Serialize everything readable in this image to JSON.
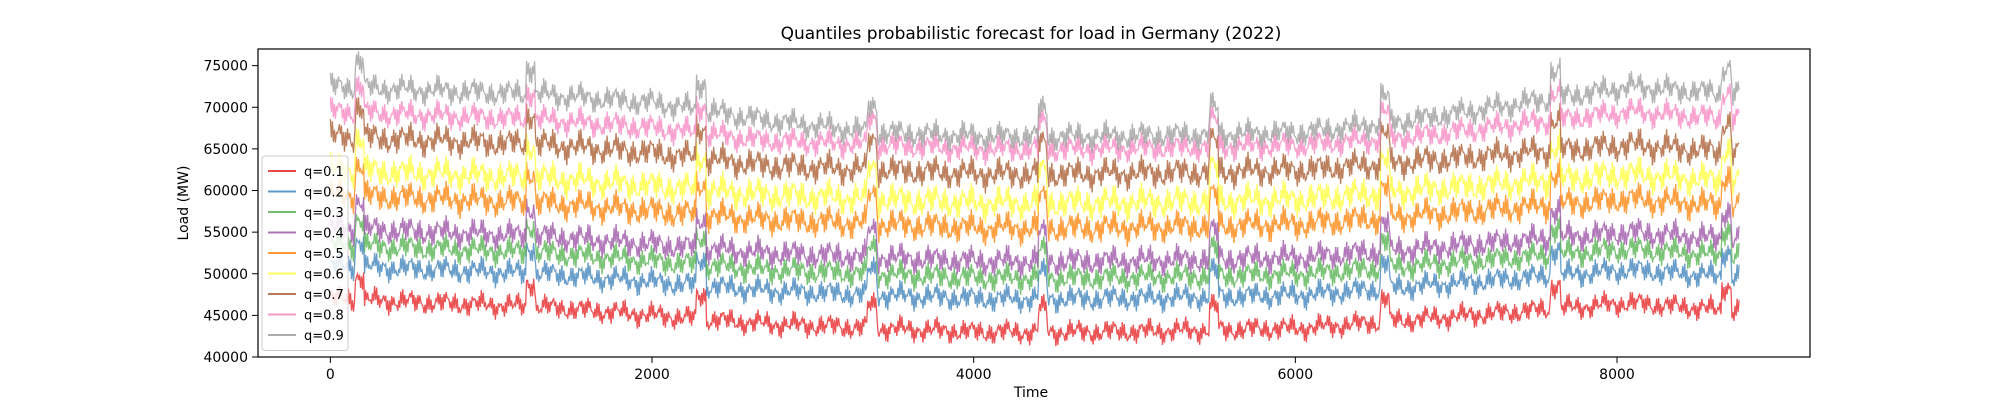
{
  "chart_data": {
    "type": "line",
    "title": "Quantiles probabilistic forecast for load in Germany (2022)",
    "xlabel": "Time",
    "ylabel": "Load (MW)",
    "xlim": [
      -450,
      9200
    ],
    "ylim": [
      40000,
      77000
    ],
    "x_range": [
      0,
      8759
    ],
    "xticks": [
      0,
      2000,
      4000,
      6000,
      8000
    ],
    "xtick_labels": [
      "0",
      "2000",
      "4000",
      "6000",
      "8000"
    ],
    "yticks": [
      40000,
      45000,
      50000,
      55000,
      60000,
      65000,
      70000,
      75000
    ],
    "ytick_labels": [
      "40000",
      "45000",
      "50000",
      "55000",
      "60000",
      "65000",
      "70000",
      "75000"
    ],
    "legend_position": "lower-left",
    "grid": false,
    "series": [
      {
        "name": "q=0.1",
        "color": "#e41a1c",
        "base": [
          47000,
          46500,
          46000,
          45000,
          44000,
          43500,
          43000,
          43000,
          43200,
          43500,
          44500,
          45500,
          46500,
          45500
        ],
        "swing": 3500
      },
      {
        "name": "q=0.2",
        "color": "#377eb8",
        "base": [
          51000,
          50500,
          50000,
          49000,
          48000,
          47500,
          47000,
          47000,
          47200,
          47500,
          48500,
          49500,
          50500,
          49500
        ],
        "swing": 3800
      },
      {
        "name": "q=0.3",
        "color": "#4daf4a",
        "base": [
          53500,
          53000,
          52500,
          51500,
          50500,
          50000,
          49500,
          49500,
          49700,
          50000,
          51000,
          52000,
          53000,
          52000
        ],
        "swing": 4000
      },
      {
        "name": "q=0.4",
        "color": "#984ea3",
        "base": [
          55500,
          55000,
          54500,
          53500,
          52500,
          52000,
          51500,
          51500,
          51700,
          52000,
          53000,
          54000,
          55000,
          54000
        ],
        "swing": 4200
      },
      {
        "name": "q=0.5",
        "color": "#ff7f00",
        "base": [
          59500,
          59000,
          58500,
          57500,
          56500,
          56000,
          55500,
          55500,
          55700,
          56000,
          57000,
          58000,
          59000,
          58000
        ],
        "swing": 4500
      },
      {
        "name": "q=0.6",
        "color": "#ffff33",
        "base": [
          62500,
          62000,
          61500,
          60500,
          59500,
          59000,
          58500,
          58500,
          58700,
          59000,
          60000,
          61000,
          62000,
          61000
        ],
        "swing": 4800
      },
      {
        "name": "q=0.7",
        "color": "#a65628",
        "base": [
          66500,
          66000,
          65500,
          64500,
          63000,
          62500,
          62000,
          62000,
          62200,
          62500,
          63500,
          64500,
          65500,
          64500
        ],
        "swing": 4500
      },
      {
        "name": "q=0.8",
        "color": "#f781bf",
        "base": [
          69500,
          69000,
          68500,
          67500,
          66000,
          65500,
          65000,
          65000,
          65200,
          65500,
          66500,
          68000,
          69500,
          68500
        ],
        "swing": 4000
      },
      {
        "name": "q=0.9",
        "color": "#999999",
        "base": [
          72500,
          72000,
          71500,
          70500,
          68500,
          67000,
          66500,
          66500,
          66700,
          67000,
          68500,
          70500,
          72500,
          71500
        ],
        "swing": 4000
      }
    ]
  }
}
